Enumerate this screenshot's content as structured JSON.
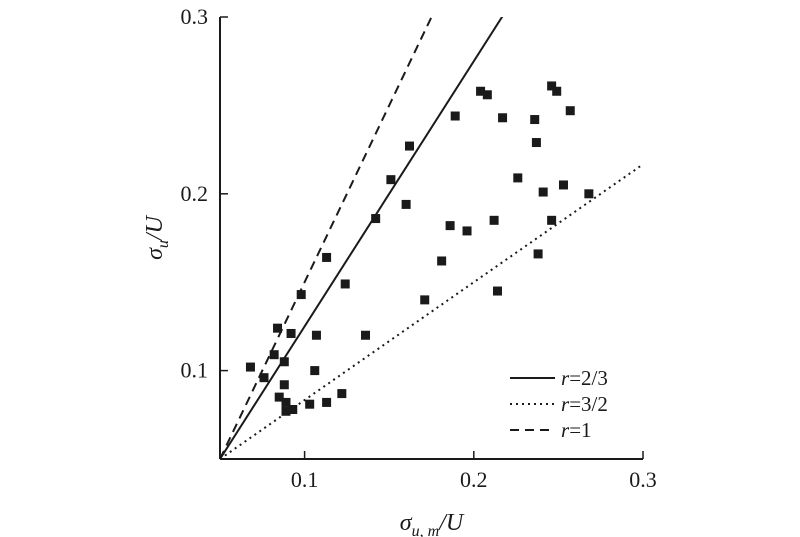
{
  "chart_data": {
    "type": "scatter",
    "xlim": [
      0.05,
      0.3
    ],
    "ylim": [
      0.05,
      0.3
    ],
    "xticks": [
      {
        "value": 0.1,
        "label": "0.1"
      },
      {
        "value": 0.2,
        "label": "0.2"
      },
      {
        "value": 0.3,
        "label": "0.3"
      }
    ],
    "yticks": [
      {
        "value": 0.1,
        "label": "0.1"
      },
      {
        "value": 0.2,
        "label": "0.2"
      },
      {
        "value": 0.3,
        "label": "0.3"
      }
    ],
    "xlabel": {
      "base": "σ",
      "sub": "u, m",
      "rest": "/U"
    },
    "ylabel": {
      "base": "σ",
      "sub": "u",
      "rest": "/U"
    },
    "grid": false,
    "legend_position": "bottom-right",
    "lines": [
      {
        "label": "2/3",
        "slope": 1.5,
        "style": "solid"
      },
      {
        "label": "3/2",
        "slope": 0.6667,
        "style": "dotted"
      },
      {
        "label": "1",
        "slope": 2.0,
        "style": "dashed"
      }
    ],
    "legend_var": "r",
    "legend_eq": "=",
    "points": [
      [
        0.068,
        0.102
      ],
      [
        0.076,
        0.096
      ],
      [
        0.082,
        0.109
      ],
      [
        0.084,
        0.124
      ],
      [
        0.092,
        0.121
      ],
      [
        0.088,
        0.105
      ],
      [
        0.098,
        0.143
      ],
      [
        0.113,
        0.164
      ],
      [
        0.124,
        0.149
      ],
      [
        0.107,
        0.12
      ],
      [
        0.085,
        0.085
      ],
      [
        0.088,
        0.092
      ],
      [
        0.089,
        0.082
      ],
      [
        0.089,
        0.077
      ],
      [
        0.093,
        0.078
      ],
      [
        0.103,
        0.081
      ],
      [
        0.106,
        0.1
      ],
      [
        0.113,
        0.082
      ],
      [
        0.122,
        0.087
      ],
      [
        0.136,
        0.12
      ],
      [
        0.142,
        0.186
      ],
      [
        0.151,
        0.208
      ],
      [
        0.16,
        0.194
      ],
      [
        0.162,
        0.227
      ],
      [
        0.171,
        0.14
      ],
      [
        0.181,
        0.162
      ],
      [
        0.186,
        0.182
      ],
      [
        0.189,
        0.244
      ],
      [
        0.196,
        0.179
      ],
      [
        0.204,
        0.258
      ],
      [
        0.208,
        0.256
      ],
      [
        0.212,
        0.185
      ],
      [
        0.214,
        0.145
      ],
      [
        0.217,
        0.243
      ],
      [
        0.226,
        0.209
      ],
      [
        0.236,
        0.242
      ],
      [
        0.237,
        0.229
      ],
      [
        0.238,
        0.166
      ],
      [
        0.241,
        0.201
      ],
      [
        0.246,
        0.185
      ],
      [
        0.246,
        0.261
      ],
      [
        0.249,
        0.258
      ],
      [
        0.253,
        0.205
      ],
      [
        0.257,
        0.247
      ],
      [
        0.268,
        0.2
      ]
    ]
  }
}
